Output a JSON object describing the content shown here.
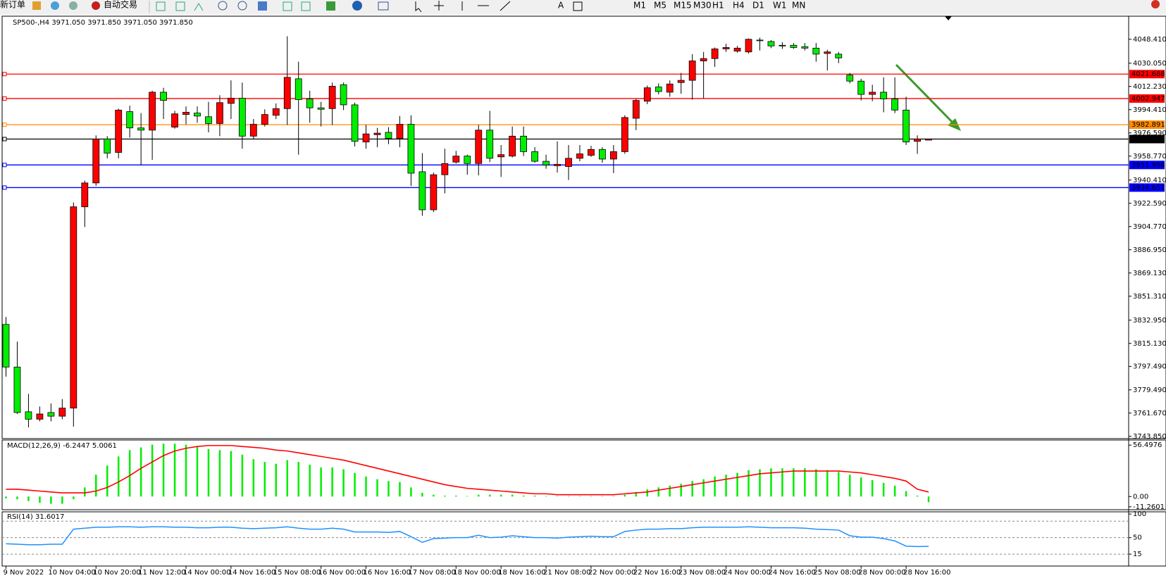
{
  "toolbar": {
    "new_order": "新订单",
    "auto_trading": "自动交易",
    "timeframes": [
      "M1",
      "M5",
      "M15",
      "M30",
      "H1",
      "H4",
      "D1",
      "W1",
      "MN"
    ]
  },
  "chart_data": [
    {
      "type": "candlestick",
      "title": "SP500-,H4  3971.050 3971.850 3971.050 3971.850",
      "categories": [
        "9 Nov 2022",
        null,
        null,
        null,
        "10 Nov 04:00",
        null,
        null,
        null,
        "10 Nov 20:00",
        null,
        null,
        null,
        "11 Nov 12:00",
        null,
        null,
        null,
        "14 Nov 00:00",
        null,
        null,
        null,
        "14 Nov 16:00",
        null,
        null,
        null,
        "15 Nov 08:00",
        null,
        null,
        null,
        "16 Nov 00:00",
        null,
        null,
        null,
        "16 Nov 16:00",
        null,
        null,
        null,
        "17 Nov 08:00",
        null,
        null,
        null,
        "18 Nov 00:00",
        null,
        null,
        null,
        "18 Nov 16:00",
        null,
        null,
        null,
        "21 Nov 08:00",
        null,
        null,
        null,
        "22 Nov 00:00",
        null,
        null,
        null,
        "22 Nov 16:00",
        null,
        null,
        null,
        "23 Nov 08:00",
        null,
        null,
        null,
        "24 Nov 00:00",
        null,
        null,
        null,
        "24 Nov 16:00",
        null,
        null,
        null,
        "25 Nov 08:00",
        null,
        null,
        null,
        "28 Nov 00:00",
        null,
        null,
        null,
        "28 Nov 16:00",
        null,
        null
      ],
      "open": [
        3829.7,
        3797.0,
        3762.7,
        3757.0,
        3762.1,
        3759.3,
        3765.5,
        3919.9,
        3938.2,
        3971.9,
        3961.6,
        3992.9,
        3980.4,
        3978.7,
        4007.8,
        3981.0,
        3990.7,
        3991.8,
        3989.0,
        3983.8,
        3999.2,
        4003.2,
        3974.1,
        3983.2,
        3990.1,
        3995.2,
        4018.1,
        4002.6,
        3995.8,
        3995.2,
        4013.5,
        3998.1,
        3969.6,
        3975.2,
        3977.0,
        3972.4,
        3983.2,
        3946.8,
        3917.6,
        3944.5,
        3954.2,
        3958.8,
        3953.1,
        3978.7,
        3958.2,
        3958.8,
        3974.1,
        3962.2,
        3954.8,
        3951.4,
        3950.8,
        3957.1,
        3959.4,
        3963.9,
        3956.5,
        3962.2,
        3987.8,
        4000.9,
        4011.8,
        4007.8,
        4015.2,
        4016.9,
        4031.8,
        4033.6,
        4041.0,
        4039.3,
        4038.7,
        4047.8,
        4046.7,
        4043.8,
        4043.8,
        4042.7,
        4041.6,
        4037.5,
        4037.0,
        4020.9,
        4016.3,
        4006.1,
        4007.8,
        4002.6,
        3994.1,
        3970.1,
        3971.05
      ],
      "high": [
        3835.4,
        3816.5,
        3776.4,
        3766.7,
        3769.0,
        3772.4,
        3923.3,
        3940.0,
        3974.7,
        3974.1,
        3995.2,
        3997.5,
        3991.8,
        4008.9,
        4011.2,
        3993.5,
        3996.9,
        3996.9,
        4000.4,
        4005.5,
        4016.9,
        4015.2,
        3987.2,
        3994.7,
        3999.2,
        4050.7,
        4031.2,
        4008.9,
        4000.4,
        4015.2,
        4015.2,
        3999.8,
        3982.7,
        3980.4,
        3981.0,
        3989.5,
        3990.1,
        3961.1,
        3946.2,
        3964.5,
        3962.8,
        3959.9,
        3982.7,
        3993.5,
        3967.3,
        3981.5,
        3981.5,
        3965.6,
        3959.9,
        3970.1,
        3967.3,
        3967.3,
        3966.7,
        3965.6,
        3967.3,
        3990.1,
        4002.6,
        4012.9,
        4014.6,
        4016.9,
        4022.6,
        4037.0,
        4038.7,
        4042.1,
        4045.0,
        4043.3,
        4049.0,
        4049.6,
        4047.8,
        4046.1,
        4045.5,
        4045.5,
        4045.5,
        4040.4,
        4038.7,
        4022.6,
        4018.1,
        4013.5,
        4019.2,
        4019.2,
        4004.3,
        3974.7,
        3971.85
      ],
      "low": [
        3789.6,
        3761.0,
        3750.7,
        3755.3,
        3755.3,
        3757.0,
        3751.3,
        3904.4,
        3935.9,
        3957.1,
        3957.1,
        3973.0,
        3952.0,
        3955.9,
        3987.2,
        3979.8,
        3983.2,
        3984.4,
        3977.0,
        3974.1,
        3987.2,
        3964.5,
        3971.9,
        3981.5,
        3987.2,
        3982.7,
        3959.9,
        3984.4,
        3981.5,
        3982.7,
        3994.1,
        3966.2,
        3964.5,
        3965.6,
        3967.9,
        3965.6,
        3935.9,
        3913.0,
        3915.9,
        3930.2,
        3953.1,
        3944.5,
        3944.0,
        3954.2,
        3942.8,
        3957.7,
        3958.8,
        3953.7,
        3949.1,
        3946.2,
        3940.5,
        3954.8,
        3958.2,
        3953.7,
        3945.7,
        3960.5,
        3978.7,
        3998.6,
        4006.1,
        4004.3,
        4006.6,
        4002.1,
        4003.2,
        4027.2,
        4038.7,
        4038.1,
        4037.5,
        4039.8,
        4041.6,
        4041.0,
        4041.0,
        4039.8,
        4031.2,
        4024.4,
        4030.1,
        4014.6,
        4001.5,
        4000.9,
        3992.4,
        3991.8,
        3967.3,
        3960.5,
        3971.05
      ],
      "close": [
        3797.0,
        3762.1,
        3757.0,
        3761.0,
        3759.3,
        3765.5,
        3919.9,
        3938.2,
        3971.9,
        3961.1,
        3994.1,
        3980.4,
        3978.7,
        4007.8,
        4001.5,
        3991.2,
        3992.4,
        3989.5,
        3983.8,
        3999.8,
        4003.2,
        3974.1,
        3983.2,
        3990.7,
        3995.2,
        4019.2,
        4002.1,
        3995.8,
        3994.7,
        4012.4,
        3998.1,
        3970.1,
        3975.8,
        3976.4,
        3972.4,
        3983.2,
        3945.7,
        3917.6,
        3944.5,
        3953.1,
        3958.8,
        3953.1,
        3978.7,
        3957.1,
        3959.9,
        3974.1,
        3962.2,
        3954.8,
        3952.0,
        3952.5,
        3957.1,
        3960.5,
        3963.9,
        3956.5,
        3962.2,
        3988.4,
        4001.5,
        4011.2,
        4008.3,
        4014.1,
        4016.9,
        4031.8,
        4033.6,
        4041.0,
        4042.1,
        4041.6,
        4048.4,
        4047.3,
        4043.3,
        4043.3,
        4042.1,
        4041.6,
        4037.0,
        4038.7,
        4034.1,
        4016.3,
        4006.1,
        4007.8,
        4002.6,
        3994.1,
        3969.6,
        3971.9,
        3971.85
      ],
      "up_color": "#ff0000",
      "down_color": "#00ee00",
      "ylim": [
        3742.1,
        4066.1
      ],
      "yticks": [
        {
          "value": 4048.41,
          "label": "4048.410"
        },
        {
          "value": 4030.05,
          "label": "4030.050"
        },
        {
          "value": 4012.23,
          "label": "4012.230"
        },
        {
          "value": 3994.41,
          "label": "3994.410"
        },
        {
          "value": 3976.59,
          "label": "3976.590"
        },
        {
          "value": 3958.77,
          "label": "3958.770"
        },
        {
          "value": 3940.41,
          "label": "3940.410"
        },
        {
          "value": 3922.59,
          "label": "3922.590"
        },
        {
          "value": 3904.77,
          "label": "3904.770"
        },
        {
          "value": 3886.95,
          "label": "3886.950"
        },
        {
          "value": 3869.13,
          "label": "3869.130"
        },
        {
          "value": 3851.31,
          "label": "3851.310"
        },
        {
          "value": 3832.95,
          "label": "3832.950"
        },
        {
          "value": 3815.13,
          "label": "3815.130"
        },
        {
          "value": 3797.49,
          "label": "3797.490"
        },
        {
          "value": 3779.49,
          "label": "3779.490"
        },
        {
          "value": 3761.67,
          "label": "3761.670"
        },
        {
          "value": 3743.85,
          "label": "3743.850"
        }
      ],
      "levels": [
        {
          "value": 4021.688,
          "label": "4021.688",
          "color": "#ff0000"
        },
        {
          "value": 4002.947,
          "label": "4002.947",
          "color": "#ff0000"
        },
        {
          "value": 3982.891,
          "label": "3982.891",
          "color": "#ff8c00"
        },
        {
          "value": 3971.85,
          "label": "3971.850",
          "color": "#000000"
        },
        {
          "value": 3951.996,
          "label": "3951.996",
          "color": "#0000ff"
        },
        {
          "value": 3934.651,
          "label": "3934.651",
          "color": "#0000ff"
        }
      ]
    },
    {
      "type": "macd",
      "title": "MACD(12,26,9) -6.2447 5.0061",
      "series": [
        {
          "color": "#00ee00",
          "values": [
            -2,
            -3,
            -5,
            -7,
            -8,
            -8,
            -3,
            10,
            24,
            34,
            44,
            51,
            54,
            57,
            58,
            58,
            57,
            55,
            52,
            51,
            50,
            46,
            41,
            38,
            36,
            40,
            38,
            35,
            32,
            32,
            30,
            26,
            22,
            19,
            17,
            16,
            10,
            4,
            2,
            1,
            1,
            0.5,
            2,
            2,
            2,
            2,
            1,
            1,
            0.5,
            0.5,
            0.5,
            0.5,
            0.5,
            0.5,
            0.5,
            2,
            5,
            8,
            10,
            12,
            14,
            17,
            19,
            22,
            24,
            26,
            29,
            30,
            31,
            31,
            31,
            31,
            30,
            29,
            27,
            24,
            21,
            18,
            15,
            12,
            6,
            1,
            -6.2447
          ]
        },
        {
          "color": "#ff0000",
          "values": [
            8,
            8,
            7,
            6,
            5,
            4,
            4,
            4,
            6,
            10,
            16,
            23,
            31,
            38,
            45,
            50,
            53,
            55,
            56,
            56,
            56,
            55,
            54,
            53,
            51,
            50,
            48,
            46,
            44,
            42,
            40,
            37,
            34,
            31,
            28,
            25,
            22,
            19,
            16,
            13,
            11,
            9,
            8,
            7,
            6,
            5,
            4,
            3,
            3,
            2,
            2,
            2,
            2,
            2,
            2,
            3,
            4,
            5,
            7,
            9,
            11,
            13,
            15,
            17,
            19,
            21,
            23,
            25,
            26,
            27,
            28,
            28,
            28,
            28,
            28,
            27,
            26,
            24,
            22,
            20,
            17,
            8,
            5.0061
          ]
        }
      ],
      "ylim": [
        -14.5,
        62.1
      ],
      "yticks": [
        56.4976,
        {
          "value": 0,
          "label": "0.00"
        },
        -11.2601
      ]
    },
    {
      "type": "rsi",
      "title": "RSI(14) 31.6017",
      "color": "#1e90ff",
      "values": [
        37,
        36,
        35,
        35,
        36,
        36,
        68,
        70,
        72,
        72,
        73,
        73,
        72,
        73,
        73,
        72,
        72,
        71,
        71,
        72,
        72,
        70,
        69,
        70,
        71,
        73,
        70,
        68,
        68,
        70,
        68,
        62,
        62,
        62,
        61,
        63,
        52,
        40,
        48,
        49,
        50,
        50,
        55,
        50,
        51,
        54,
        52,
        50,
        50,
        49,
        51,
        52,
        53,
        52,
        52,
        63,
        66,
        68,
        68,
        69,
        69,
        71,
        72,
        72,
        72,
        72,
        73,
        72,
        71,
        71,
        71,
        70,
        68,
        67,
        66,
        54,
        51,
        51,
        48,
        43,
        32,
        31,
        31.6017
      ],
      "ylim": [
        -10.2,
        104.7
      ],
      "yticks": [
        100,
        50,
        15
      ],
      "levels": [
        85,
        50,
        15
      ]
    }
  ]
}
